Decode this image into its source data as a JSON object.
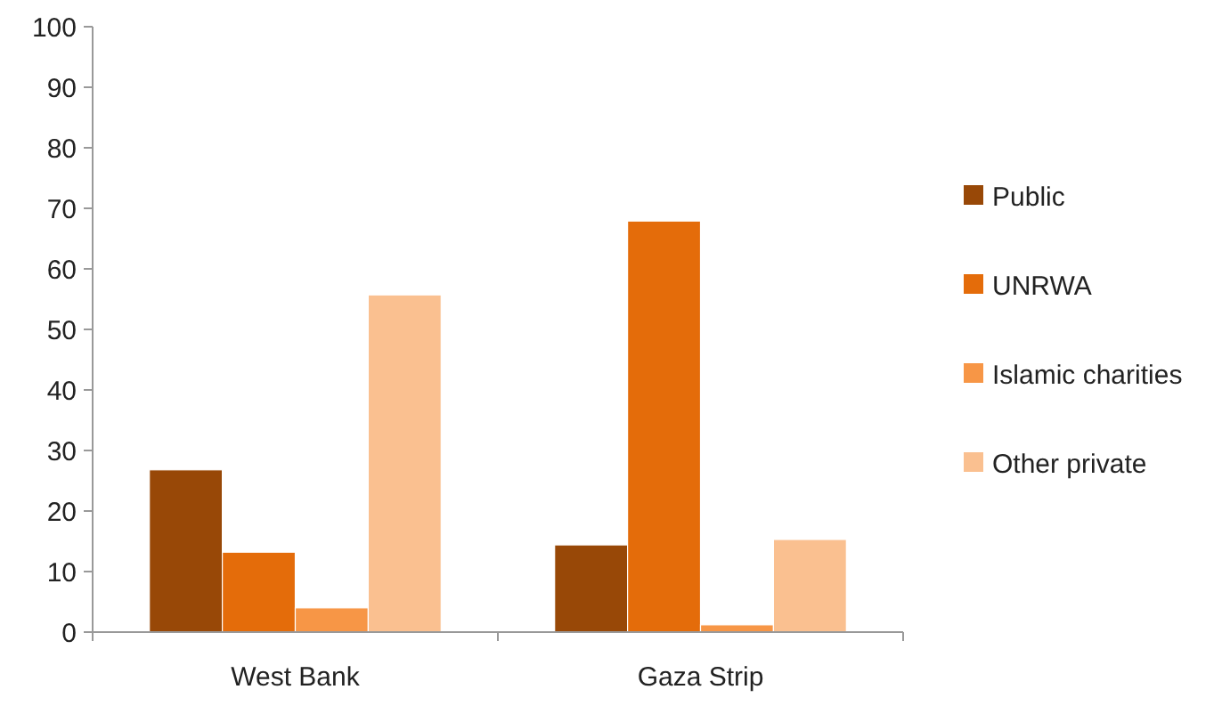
{
  "chart_data": {
    "type": "bar",
    "categories": [
      "West Bank",
      "Gaza Strip"
    ],
    "series": [
      {
        "name": "Public",
        "color": "#984807",
        "values": [
          26.8,
          14.4
        ]
      },
      {
        "name": "UNRWA",
        "color": "#e46c0a",
        "values": [
          13.2,
          67.9
        ]
      },
      {
        "name": "Islamic charities",
        "color": "#f79646",
        "values": [
          4,
          1.2
        ]
      },
      {
        "name": "Other private",
        "color": "#fac090",
        "values": [
          55.7,
          15.3
        ]
      }
    ],
    "ylim": [
      0,
      100
    ],
    "yticks": [
      0,
      10,
      20,
      30,
      40,
      50,
      60,
      70,
      80,
      90,
      100
    ],
    "grid": false,
    "legend": "right"
  }
}
